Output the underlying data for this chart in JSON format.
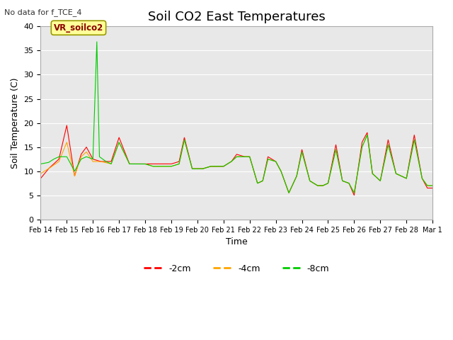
{
  "title": "Soil CO2 East Temperatures",
  "xlabel": "Time",
  "ylabel": "Soil Temperature (C)",
  "no_data_text": "No data for f_TCE_4",
  "annotation_text": "VR_soilco2",
  "ylim": [
    0,
    40
  ],
  "line_colors": {
    "m2cm": "#ff0000",
    "m4cm": "#ffa500",
    "m8cm": "#00cc00"
  },
  "line_labels": {
    "-2cm": "-2cm",
    "-4cm": "-4cm",
    "-8cm": "-8cm"
  },
  "bg_color": "#e8e8e8",
  "fig_color": "#ffffff",
  "grid_color": "#ffffff",
  "tick_labels": [
    "Feb 14",
    "Feb 15",
    "Feb 16",
    "Feb 17",
    "Feb 18",
    "Feb 19",
    "Feb 20",
    "Feb 21",
    "Feb 22",
    "Feb 23",
    "Feb 24",
    "Feb 25",
    "Feb 26",
    "Feb 27",
    "Feb 28",
    "Mar 1"
  ],
  "title_fontsize": 13,
  "label_fontsize": 9,
  "tick_fontsize": 7
}
